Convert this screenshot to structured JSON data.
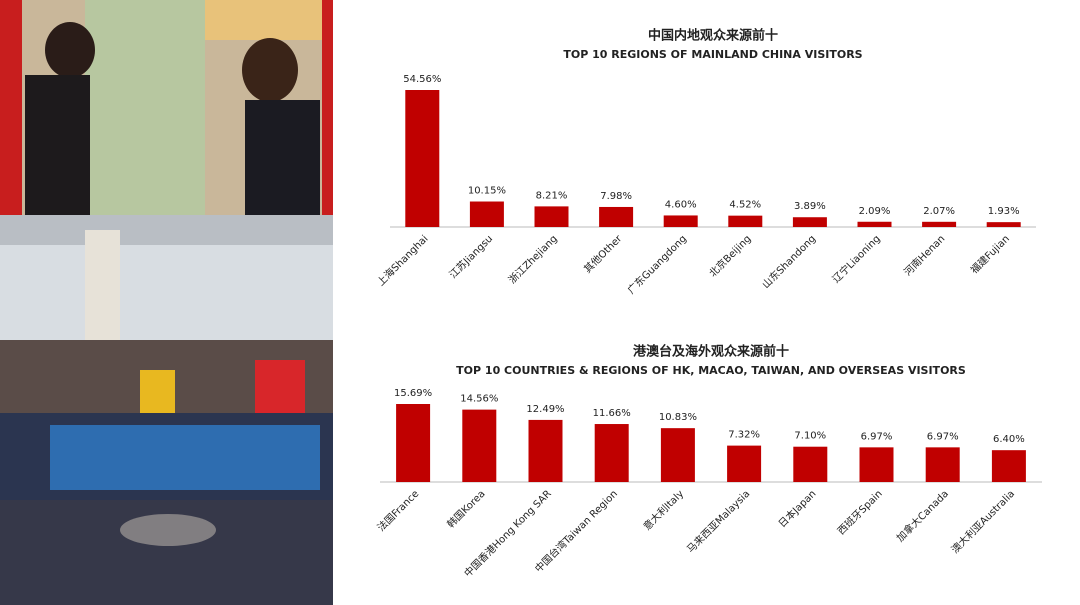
{
  "chart_data": [
    {
      "type": "bar",
      "title": "中国内地观众来源前十",
      "subtitle": "TOP 10 REGIONS OF MAINLAND CHINA VISITORS",
      "categories": [
        "上海Shanghai",
        "江苏Jiangsu",
        "浙江Zhejiang",
        "其他Other",
        "广东Guangdong",
        "北京Beijing",
        "山东Shandong",
        "辽宁Liaoning",
        "河南Henan",
        "福建Fujian"
      ],
      "values": [
        54.56,
        10.15,
        8.21,
        7.98,
        4.6,
        4.52,
        3.89,
        2.09,
        2.07,
        1.93
      ],
      "value_labels": [
        "54.56%",
        "10.15%",
        "8.21%",
        "7.98%",
        "4.60%",
        "4.52%",
        "3.89%",
        "2.09%",
        "2.07%",
        "1.93%"
      ],
      "color": "#c00000"
    },
    {
      "type": "bar",
      "title": "港澳台及海外观众来源前十",
      "subtitle": "TOP 10 COUNTRIES & REGIONS OF HK, MACAO,  TAIWAN, AND OVERSEAS VISITORS",
      "categories": [
        "法国France",
        "韩国Korea",
        "中国香港Hong Kong SAR",
        "中国台湾Taiwan Region",
        "意大利Italy",
        "马来西亚Malaysia",
        "日本Japan",
        "西班牙Spain",
        "加拿大Canada",
        "澳大利亚Australia"
      ],
      "values": [
        15.69,
        14.56,
        12.49,
        11.66,
        10.83,
        7.32,
        7.1,
        6.97,
        6.97,
        6.4
      ],
      "value_labels": [
        "15.69%",
        "14.56%",
        "12.49%",
        "11.66%",
        "10.83%",
        "7.32%",
        "7.10%",
        "6.97%",
        "6.97%",
        "6.40%"
      ],
      "color": "#c00000"
    }
  ]
}
